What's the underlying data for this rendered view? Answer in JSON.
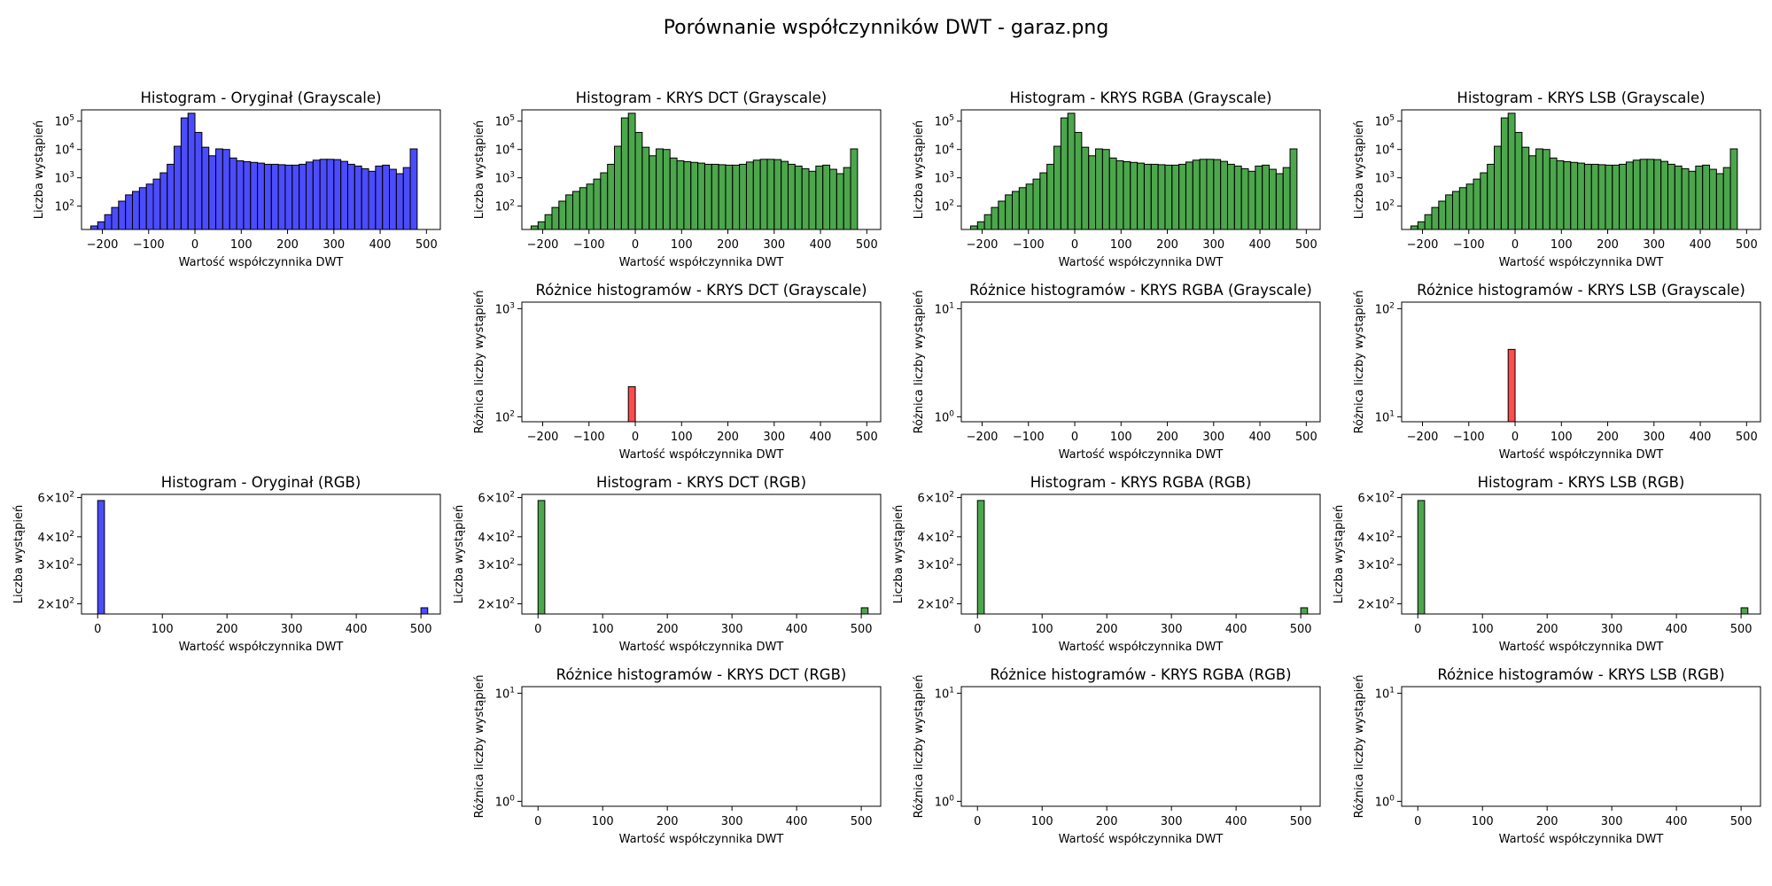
{
  "suptitle": "Porównanie współczynników DWT - garaz.png",
  "colors": {
    "original": "#0000ff",
    "krys": "#008000",
    "diff": "#ff0000",
    "edge": "#000000"
  },
  "chart_data": [
    {
      "id": "gray-orig",
      "type": "bar",
      "title": "Histogram - Oryginał (Grayscale)",
      "xlabel": "Wartość współczynnika DWT",
      "ylabel": "Liczba wystąpień",
      "color": "original",
      "yscale": "log",
      "xlim": [
        -245,
        530
      ],
      "ylim": [
        15,
        250000
      ],
      "xticks": [
        -200,
        -100,
        0,
        100,
        200,
        300,
        400,
        500
      ],
      "xtick_labels": [
        "−200",
        "−100",
        "0",
        "100",
        "200",
        "300",
        "400",
        "500"
      ],
      "yticks": [
        100,
        1000,
        10000,
        100000
      ],
      "ytick_base": "10",
      "ytick_exp": [
        "2",
        "3",
        "4",
        "5"
      ],
      "bin_start": -225,
      "bin_width": 15,
      "values": [
        20,
        28,
        50,
        90,
        150,
        250,
        330,
        450,
        600,
        900,
        1500,
        3000,
        13000,
        130000,
        190000,
        40000,
        12000,
        6000,
        10500,
        10000,
        5000,
        4000,
        3700,
        3500,
        3300,
        3000,
        3000,
        2900,
        2800,
        2800,
        3000,
        3600,
        4200,
        4500,
        4500,
        4400,
        3800,
        3000,
        2600,
        2100,
        1700,
        2600,
        2800,
        2000,
        1400,
        2300,
        10500
      ]
    },
    {
      "id": "gray-dct",
      "type": "bar",
      "title": "Histogram - KRYS DCT (Grayscale)",
      "xlabel": "Wartość współczynnika DWT",
      "ylabel": "Liczba wystąpień",
      "color": "krys",
      "yscale": "log",
      "xlim": [
        -245,
        530
      ],
      "ylim": [
        15,
        250000
      ],
      "xticks": [
        -200,
        -100,
        0,
        100,
        200,
        300,
        400,
        500
      ],
      "xtick_labels": [
        "−200",
        "−100",
        "0",
        "100",
        "200",
        "300",
        "400",
        "500"
      ],
      "yticks": [
        100,
        1000,
        10000,
        100000
      ],
      "ytick_base": "10",
      "ytick_exp": [
        "2",
        "3",
        "4",
        "5"
      ],
      "bin_start": -225,
      "bin_width": 15,
      "values": [
        20,
        28,
        50,
        90,
        150,
        250,
        330,
        450,
        600,
        900,
        1500,
        3000,
        13000,
        130000,
        190000,
        40000,
        12000,
        6000,
        10500,
        10000,
        5000,
        4000,
        3700,
        3500,
        3300,
        3000,
        3000,
        2900,
        2800,
        2800,
        3000,
        3600,
        4200,
        4500,
        4500,
        4400,
        3800,
        3000,
        2600,
        2100,
        1700,
        2600,
        2800,
        2000,
        1400,
        2300,
        10500
      ]
    },
    {
      "id": "gray-rgba",
      "type": "bar",
      "title": "Histogram - KRYS RGBA (Grayscale)",
      "xlabel": "Wartość współczynnika DWT",
      "ylabel": "Liczba wystąpień",
      "color": "krys",
      "yscale": "log",
      "xlim": [
        -245,
        530
      ],
      "ylim": [
        15,
        250000
      ],
      "xticks": [
        -200,
        -100,
        0,
        100,
        200,
        300,
        400,
        500
      ],
      "xtick_labels": [
        "−200",
        "−100",
        "0",
        "100",
        "200",
        "300",
        "400",
        "500"
      ],
      "yticks": [
        100,
        1000,
        10000,
        100000
      ],
      "ytick_base": "10",
      "ytick_exp": [
        "2",
        "3",
        "4",
        "5"
      ],
      "bin_start": -225,
      "bin_width": 15,
      "values": [
        20,
        28,
        50,
        90,
        150,
        250,
        330,
        450,
        600,
        900,
        1500,
        3000,
        13000,
        130000,
        190000,
        40000,
        12000,
        6000,
        10500,
        10000,
        5000,
        4000,
        3700,
        3500,
        3300,
        3000,
        3000,
        2900,
        2800,
        2800,
        3000,
        3600,
        4200,
        4500,
        4500,
        4400,
        3800,
        3000,
        2600,
        2100,
        1700,
        2600,
        2800,
        2000,
        1400,
        2300,
        10500
      ]
    },
    {
      "id": "gray-lsb",
      "type": "bar",
      "title": "Histogram - KRYS LSB (Grayscale)",
      "xlabel": "Wartość współczynnika DWT",
      "ylabel": "Liczba wystąpień",
      "color": "krys",
      "yscale": "log",
      "xlim": [
        -245,
        530
      ],
      "ylim": [
        15,
        250000
      ],
      "xticks": [
        -200,
        -100,
        0,
        100,
        200,
        300,
        400,
        500
      ],
      "xtick_labels": [
        "−200",
        "−100",
        "0",
        "100",
        "200",
        "300",
        "400",
        "500"
      ],
      "yticks": [
        100,
        1000,
        10000,
        100000
      ],
      "ytick_base": "10",
      "ytick_exp": [
        "2",
        "3",
        "4",
        "5"
      ],
      "bin_start": -225,
      "bin_width": 15,
      "values": [
        20,
        28,
        50,
        90,
        150,
        250,
        330,
        450,
        600,
        900,
        1500,
        3000,
        13000,
        130000,
        190000,
        40000,
        12000,
        6000,
        10500,
        10000,
        5000,
        4000,
        3700,
        3500,
        3300,
        3000,
        3000,
        2900,
        2800,
        2800,
        3000,
        3600,
        4200,
        4500,
        4500,
        4400,
        3800,
        3000,
        2600,
        2100,
        1700,
        2600,
        2800,
        2000,
        1400,
        2300,
        10500
      ]
    },
    {
      "id": "gray-dct-diff",
      "type": "bar",
      "title": "Różnice histogramów - KRYS DCT (Grayscale)",
      "xlabel": "Wartość współczynnika DWT",
      "ylabel": "Różnica liczby wystąpień",
      "color": "diff",
      "yscale": "log",
      "xlim": [
        -245,
        530
      ],
      "ylim": [
        90,
        1150
      ],
      "xticks": [
        -200,
        -100,
        0,
        100,
        200,
        300,
        400,
        500
      ],
      "xtick_labels": [
        "−200",
        "−100",
        "0",
        "100",
        "200",
        "300",
        "400",
        "500"
      ],
      "yticks": [
        100,
        1000
      ],
      "ytick_base": "10",
      "ytick_exp": [
        "2",
        "3"
      ],
      "bars": [
        {
          "x": -15,
          "width": 15,
          "value": 190
        }
      ]
    },
    {
      "id": "gray-rgba-diff",
      "type": "bar",
      "title": "Różnice histogramów - KRYS RGBA (Grayscale)",
      "xlabel": "Wartość współczynnika DWT",
      "ylabel": "Różnica liczby wystąpień",
      "color": "diff",
      "yscale": "log",
      "xlim": [
        -245,
        530
      ],
      "ylim": [
        0.9,
        11.5
      ],
      "xticks": [
        -200,
        -100,
        0,
        100,
        200,
        300,
        400,
        500
      ],
      "xtick_labels": [
        "−200",
        "−100",
        "0",
        "100",
        "200",
        "300",
        "400",
        "500"
      ],
      "yticks": [
        1,
        10
      ],
      "ytick_base": "10",
      "ytick_exp": [
        "0",
        "1"
      ],
      "bars": []
    },
    {
      "id": "gray-lsb-diff",
      "type": "bar",
      "title": "Różnice histogramów - KRYS LSB (Grayscale)",
      "xlabel": "Wartość współczynnika DWT",
      "ylabel": "Różnica liczby wystąpień",
      "color": "diff",
      "yscale": "log",
      "xlim": [
        -245,
        530
      ],
      "ylim": [
        9,
        115
      ],
      "xticks": [
        -200,
        -100,
        0,
        100,
        200,
        300,
        400,
        500
      ],
      "xtick_labels": [
        "−200",
        "−100",
        "0",
        "100",
        "200",
        "300",
        "400",
        "500"
      ],
      "yticks": [
        10,
        100
      ],
      "ytick_base": "10",
      "ytick_exp": [
        "1",
        "2"
      ],
      "bars": [
        {
          "x": -15,
          "width": 15,
          "value": 42
        }
      ]
    },
    {
      "id": "rgb-orig",
      "type": "bar",
      "title": "Histogram - Oryginał (RGB)",
      "xlabel": "Wartość współczynnika DWT",
      "ylabel": "Liczba wystąpień",
      "color": "original",
      "yscale": "log",
      "xlim": [
        -25,
        530
      ],
      "ylim": [
        180,
        620
      ],
      "xticks": [
        0,
        100,
        200,
        300,
        400,
        500
      ],
      "xtick_labels": [
        "0",
        "100",
        "200",
        "300",
        "400",
        "500"
      ],
      "yticks": [
        200,
        300,
        400,
        600
      ],
      "ytick_mant": [
        "2",
        "3",
        "4",
        "6"
      ],
      "ytick_base": "10",
      "ytick_exp": [
        "2",
        "2",
        "2",
        "2"
      ],
      "bars": [
        {
          "x": 0,
          "width": 10.5,
          "value": 582
        },
        {
          "x": 500,
          "width": 10.5,
          "value": 192
        }
      ]
    },
    {
      "id": "rgb-dct",
      "type": "bar",
      "title": "Histogram - KRYS DCT (RGB)",
      "xlabel": "Wartość współczynnika DWT",
      "ylabel": "Liczba wystąpień",
      "color": "krys",
      "yscale": "log",
      "xlim": [
        -25,
        530
      ],
      "ylim": [
        180,
        620
      ],
      "xticks": [
        0,
        100,
        200,
        300,
        400,
        500
      ],
      "xtick_labels": [
        "0",
        "100",
        "200",
        "300",
        "400",
        "500"
      ],
      "yticks": [
        200,
        300,
        400,
        600
      ],
      "ytick_mant": [
        "2",
        "3",
        "4",
        "6"
      ],
      "ytick_base": "10",
      "ytick_exp": [
        "2",
        "2",
        "2",
        "2"
      ],
      "bars": [
        {
          "x": 0,
          "width": 10.5,
          "value": 582
        },
        {
          "x": 500,
          "width": 10.5,
          "value": 192
        }
      ]
    },
    {
      "id": "rgb-rgba",
      "type": "bar",
      "title": "Histogram - KRYS RGBA (RGB)",
      "xlabel": "Wartość współczynnika DWT",
      "ylabel": "Liczba wystąpień",
      "color": "krys",
      "yscale": "log",
      "xlim": [
        -25,
        530
      ],
      "ylim": [
        180,
        620
      ],
      "xticks": [
        0,
        100,
        200,
        300,
        400,
        500
      ],
      "xtick_labels": [
        "0",
        "100",
        "200",
        "300",
        "400",
        "500"
      ],
      "yticks": [
        200,
        300,
        400,
        600
      ],
      "ytick_mant": [
        "2",
        "3",
        "4",
        "6"
      ],
      "ytick_base": "10",
      "ytick_exp": [
        "2",
        "2",
        "2",
        "2"
      ],
      "bars": [
        {
          "x": 0,
          "width": 10.5,
          "value": 582
        },
        {
          "x": 500,
          "width": 10.5,
          "value": 192
        }
      ]
    },
    {
      "id": "rgb-lsb",
      "type": "bar",
      "title": "Histogram - KRYS LSB (RGB)",
      "xlabel": "Wartość współczynnika DWT",
      "ylabel": "Liczba wystąpień",
      "color": "krys",
      "yscale": "log",
      "xlim": [
        -25,
        530
      ],
      "ylim": [
        180,
        620
      ],
      "xticks": [
        0,
        100,
        200,
        300,
        400,
        500
      ],
      "xtick_labels": [
        "0",
        "100",
        "200",
        "300",
        "400",
        "500"
      ],
      "yticks": [
        200,
        300,
        400,
        600
      ],
      "ytick_mant": [
        "2",
        "3",
        "4",
        "6"
      ],
      "ytick_base": "10",
      "ytick_exp": [
        "2",
        "2",
        "2",
        "2"
      ],
      "bars": [
        {
          "x": 0,
          "width": 10.5,
          "value": 582
        },
        {
          "x": 500,
          "width": 10.5,
          "value": 192
        }
      ]
    },
    {
      "id": "rgb-dct-diff",
      "type": "bar",
      "title": "Różnice histogramów - KRYS DCT (RGB)",
      "xlabel": "Wartość współczynnika DWT",
      "ylabel": "Różnica liczby wystąpień",
      "color": "diff",
      "yscale": "log",
      "xlim": [
        -25,
        530
      ],
      "ylim": [
        0.9,
        11.5
      ],
      "xticks": [
        0,
        100,
        200,
        300,
        400,
        500
      ],
      "xtick_labels": [
        "0",
        "100",
        "200",
        "300",
        "400",
        "500"
      ],
      "yticks": [
        1,
        10
      ],
      "ytick_base": "10",
      "ytick_exp": [
        "0",
        "1"
      ],
      "bars": []
    },
    {
      "id": "rgb-rgba-diff",
      "type": "bar",
      "title": "Różnice histogramów - KRYS RGBA (RGB)",
      "xlabel": "Wartość współczynnika DWT",
      "ylabel": "Różnica liczby wystąpień",
      "color": "diff",
      "yscale": "log",
      "xlim": [
        -25,
        530
      ],
      "ylim": [
        0.9,
        11.5
      ],
      "xticks": [
        0,
        100,
        200,
        300,
        400,
        500
      ],
      "xtick_labels": [
        "0",
        "100",
        "200",
        "300",
        "400",
        "500"
      ],
      "yticks": [
        1,
        10
      ],
      "ytick_base": "10",
      "ytick_exp": [
        "0",
        "1"
      ],
      "bars": []
    },
    {
      "id": "rgb-lsb-diff",
      "type": "bar",
      "title": "Różnice histogramów - KRYS LSB (RGB)",
      "xlabel": "Wartość współczynnika DWT",
      "ylabel": "Różnica liczby wystąpień",
      "color": "diff",
      "yscale": "log",
      "xlim": [
        -25,
        530
      ],
      "ylim": [
        0.9,
        11.5
      ],
      "xticks": [
        0,
        100,
        200,
        300,
        400,
        500
      ],
      "xtick_labels": [
        "0",
        "100",
        "200",
        "300",
        "400",
        "500"
      ],
      "yticks": [
        1,
        10
      ],
      "ytick_base": "10",
      "ytick_exp": [
        "0",
        "1"
      ],
      "bars": []
    }
  ]
}
